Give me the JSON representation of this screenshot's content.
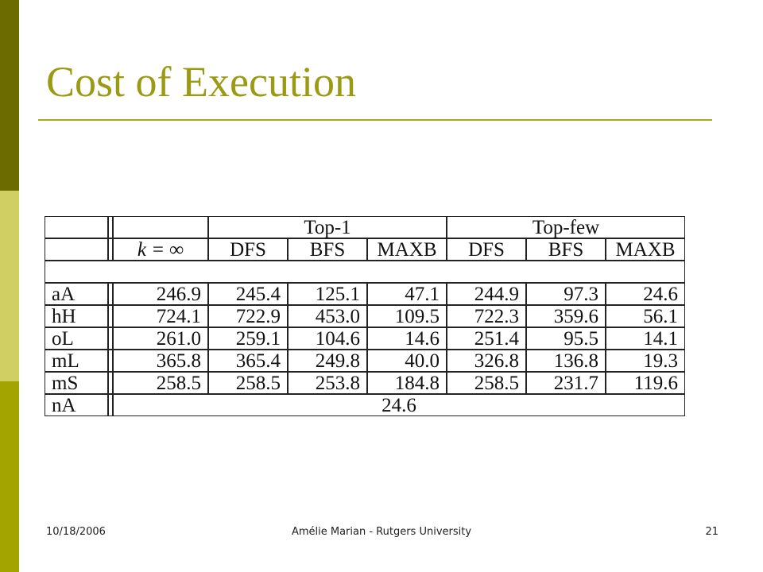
{
  "colors": {
    "title": "#9a9a14",
    "rule": "#a9a91c",
    "sidebar_top": "#6b6b00",
    "sidebar_middle": "#cfcf63",
    "sidebar_bottom": "#a4a400"
  },
  "slide": {
    "title": "Cost of Execution"
  },
  "table": {
    "group_headers": [
      "Top-1",
      "Top-few"
    ],
    "k_header": "k = ∞",
    "sub_headers": [
      "DFS",
      "BFS",
      "MAXB",
      "DFS",
      "BFS",
      "MAXB"
    ],
    "rows": [
      {
        "label": "aA",
        "values": [
          "246.9",
          "245.4",
          "125.1",
          "47.1",
          "244.9",
          "97.3",
          "24.6"
        ]
      },
      {
        "label": "hH",
        "values": [
          "724.1",
          "722.9",
          "453.0",
          "109.5",
          "722.3",
          "359.6",
          "56.1"
        ]
      },
      {
        "label": "oL",
        "values": [
          "261.0",
          "259.1",
          "104.6",
          "14.6",
          "251.4",
          "95.5",
          "14.1"
        ]
      },
      {
        "label": "mL",
        "values": [
          "365.8",
          "365.4",
          "249.8",
          "40.0",
          "326.8",
          "136.8",
          "19.3"
        ]
      },
      {
        "label": "mS",
        "values": [
          "258.5",
          "258.5",
          "253.8",
          "184.8",
          "258.5",
          "231.7",
          "119.6"
        ]
      }
    ],
    "last_row": {
      "label": "nA",
      "value": "24.6"
    }
  },
  "footer": {
    "date": "10/18/2006",
    "author": "Amélie Marian - Rutgers University",
    "page": "21"
  }
}
